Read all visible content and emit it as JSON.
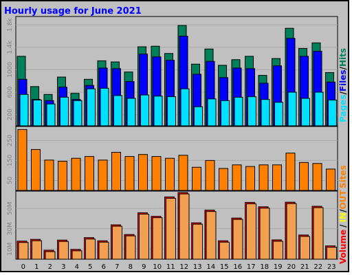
{
  "chart_data": [
    {
      "type": "bar",
      "title": "Hourly usage for June 2021",
      "categories": [
        "0",
        "1",
        "2",
        "3",
        "4",
        "5",
        "6",
        "7",
        "8",
        "9",
        "10",
        "11",
        "12",
        "13",
        "14",
        "15",
        "16",
        "17",
        "18",
        "19",
        "20",
        "21",
        "22",
        "23"
      ],
      "yticks": [
        "200",
        "600",
        "1000",
        "1.4k",
        "1.8k"
      ],
      "ylim": [
        0,
        1950
      ],
      "colors": {
        "hits": "#00805a",
        "files": "#0000ff",
        "pages": "#00e0ff"
      },
      "legend": {
        "pages": "Pages",
        "files": "Files",
        "hits": "Hits",
        "sep": "/"
      },
      "series": [
        {
          "name": "Hits",
          "values": [
            1240,
            700,
            560,
            870,
            580,
            830,
            1160,
            1140,
            960,
            1410,
            1420,
            1290,
            1790,
            1100,
            1370,
            1080,
            1180,
            1240,
            900,
            1200,
            1740,
            1380,
            1480,
            950
          ]
        },
        {
          "name": "Files",
          "values": [
            830,
            470,
            450,
            690,
            470,
            720,
            1030,
            1020,
            790,
            1280,
            1230,
            1170,
            1600,
            920,
            1150,
            860,
            1030,
            1020,
            760,
            1070,
            1560,
            1240,
            1330,
            780
          ]
        },
        {
          "name": "Pages",
          "values": [
            560,
            460,
            390,
            510,
            450,
            660,
            670,
            540,
            490,
            550,
            530,
            520,
            660,
            340,
            480,
            450,
            510,
            520,
            470,
            420,
            600,
            490,
            600,
            460
          ]
        }
      ]
    },
    {
      "type": "bar",
      "yticks": [
        "50",
        "150",
        "250"
      ],
      "ylim": [
        0,
        320
      ],
      "colors": {
        "sites": "#ff8000"
      },
      "legend": {
        "sites": "Sites"
      },
      "series": [
        {
          "name": "Sites",
          "values": [
            305,
            205,
            152,
            146,
            161,
            170,
            152,
            191,
            170,
            180,
            170,
            161,
            176,
            116,
            150,
            110,
            128,
            120,
            128,
            128,
            187,
            140,
            135,
            107
          ]
        }
      ]
    },
    {
      "type": "bar",
      "yticks": [
        "10M",
        "30M",
        "50M"
      ],
      "ylim": [
        0,
        67
      ],
      "colors": {
        "volume": "#ff0000",
        "in": "#ffff00",
        "out": "#ff8000",
        "fill": "#f0a050"
      },
      "legend": {
        "volume": "Volume",
        "in": "IN",
        "out": "OUT",
        "sep": "/"
      },
      "series": [
        {
          "name": "Volume",
          "values": [
            17.8,
            19.5,
            8.8,
            18.8,
            9.6,
            21.2,
            18.1,
            33.8,
            24.3,
            45.7,
            42.2,
            61.3,
            65.6,
            35.8,
            48.3,
            18.1,
            40.5,
            55.9,
            51.6,
            19.0,
            56.1,
            23.8,
            52.1,
            13.1
          ]
        }
      ]
    }
  ]
}
